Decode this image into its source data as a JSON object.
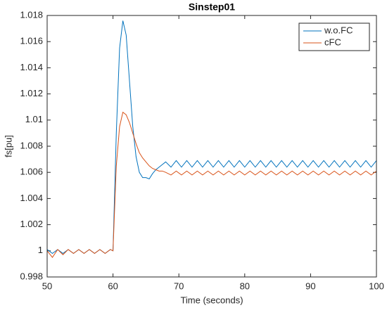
{
  "chart_data": {
    "type": "line",
    "title": "Sinstep01",
    "xlabel": "Time (seconds)",
    "ylabel": "fs[pu]",
    "x": [
      50,
      50.8,
      51.6,
      52.4,
      53.2,
      54,
      54.8,
      55.6,
      56.4,
      57.2,
      58,
      58.8,
      59.6,
      60,
      60.5,
      61,
      61.5,
      62,
      62.5,
      63,
      63.5,
      64,
      64.5,
      65,
      65.5,
      66,
      66.5,
      67,
      67.5,
      68,
      68.8,
      69.6,
      70.4,
      71.2,
      72,
      72.8,
      73.6,
      74.4,
      75.2,
      76,
      76.8,
      77.6,
      78.4,
      79.2,
      80,
      80.8,
      81.6,
      82.4,
      83.2,
      84,
      84.8,
      85.6,
      86.4,
      87.2,
      88,
      88.8,
      89.6,
      90.4,
      91.2,
      92,
      92.8,
      93.6,
      94.4,
      95.2,
      96,
      96.8,
      97.6,
      98.4,
      99.2,
      100
    ],
    "series": [
      {
        "name": "w.o.FC",
        "color": "#0072BD",
        "values": [
          1.0001,
          0.9998,
          1.0001,
          0.9998,
          1.0001,
          0.9998,
          1.0001,
          0.9998,
          1.0001,
          0.9998,
          1.0001,
          0.9998,
          1.0001,
          1.0,
          1.009,
          1.0155,
          1.0176,
          1.0165,
          1.013,
          1.0095,
          1.0072,
          1.006,
          1.0056,
          1.0056,
          1.0055,
          1.0059,
          1.0062,
          1.0064,
          1.0066,
          1.0068,
          1.0064,
          1.0069,
          1.0064,
          1.0069,
          1.0064,
          1.0069,
          1.0064,
          1.0069,
          1.0064,
          1.0069,
          1.0064,
          1.0069,
          1.0064,
          1.0069,
          1.0064,
          1.0069,
          1.0064,
          1.0069,
          1.0064,
          1.0069,
          1.0064,
          1.0069,
          1.0064,
          1.0069,
          1.0064,
          1.0069,
          1.0064,
          1.0069,
          1.0064,
          1.0069,
          1.0064,
          1.0069,
          1.0064,
          1.0069,
          1.0064,
          1.0069,
          1.0064,
          1.0069,
          1.0064,
          1.0069
        ]
      },
      {
        "name": "cFC",
        "color": "#D95319",
        "values": [
          1,
          0.9995,
          1.0001,
          0.9997,
          1.0001,
          0.9998,
          1.0001,
          0.9998,
          1.0001,
          0.9998,
          1.0001,
          0.9998,
          1.0001,
          1.0,
          1.0065,
          1.0095,
          1.0106,
          1.0104,
          1.0098,
          1.009,
          1.0082,
          1.0075,
          1.0071,
          1.0068,
          1.0065,
          1.0063,
          1.0062,
          1.0061,
          1.0061,
          1.006,
          1.0058,
          1.0061,
          1.0058,
          1.0061,
          1.0058,
          1.0061,
          1.0058,
          1.0061,
          1.0058,
          1.0061,
          1.0058,
          1.0061,
          1.0058,
          1.0061,
          1.0058,
          1.0061,
          1.0058,
          1.0061,
          1.0058,
          1.0061,
          1.0058,
          1.0061,
          1.0058,
          1.0061,
          1.0058,
          1.0061,
          1.0058,
          1.0061,
          1.0058,
          1.0061,
          1.0058,
          1.0061,
          1.0058,
          1.0061,
          1.0058,
          1.0061,
          1.0058,
          1.0061,
          1.0058,
          1.0061
        ]
      }
    ],
    "xlim": [
      50,
      100
    ],
    "xticks": [
      50,
      60,
      70,
      80,
      90,
      100
    ],
    "ylim": [
      0.998,
      1.018
    ],
    "yticks": [
      0.998,
      1,
      1.002,
      1.004,
      1.006,
      1.008,
      1.01,
      1.012,
      1.014,
      1.016,
      1.018
    ],
    "legend": "northeast",
    "grid": false
  }
}
